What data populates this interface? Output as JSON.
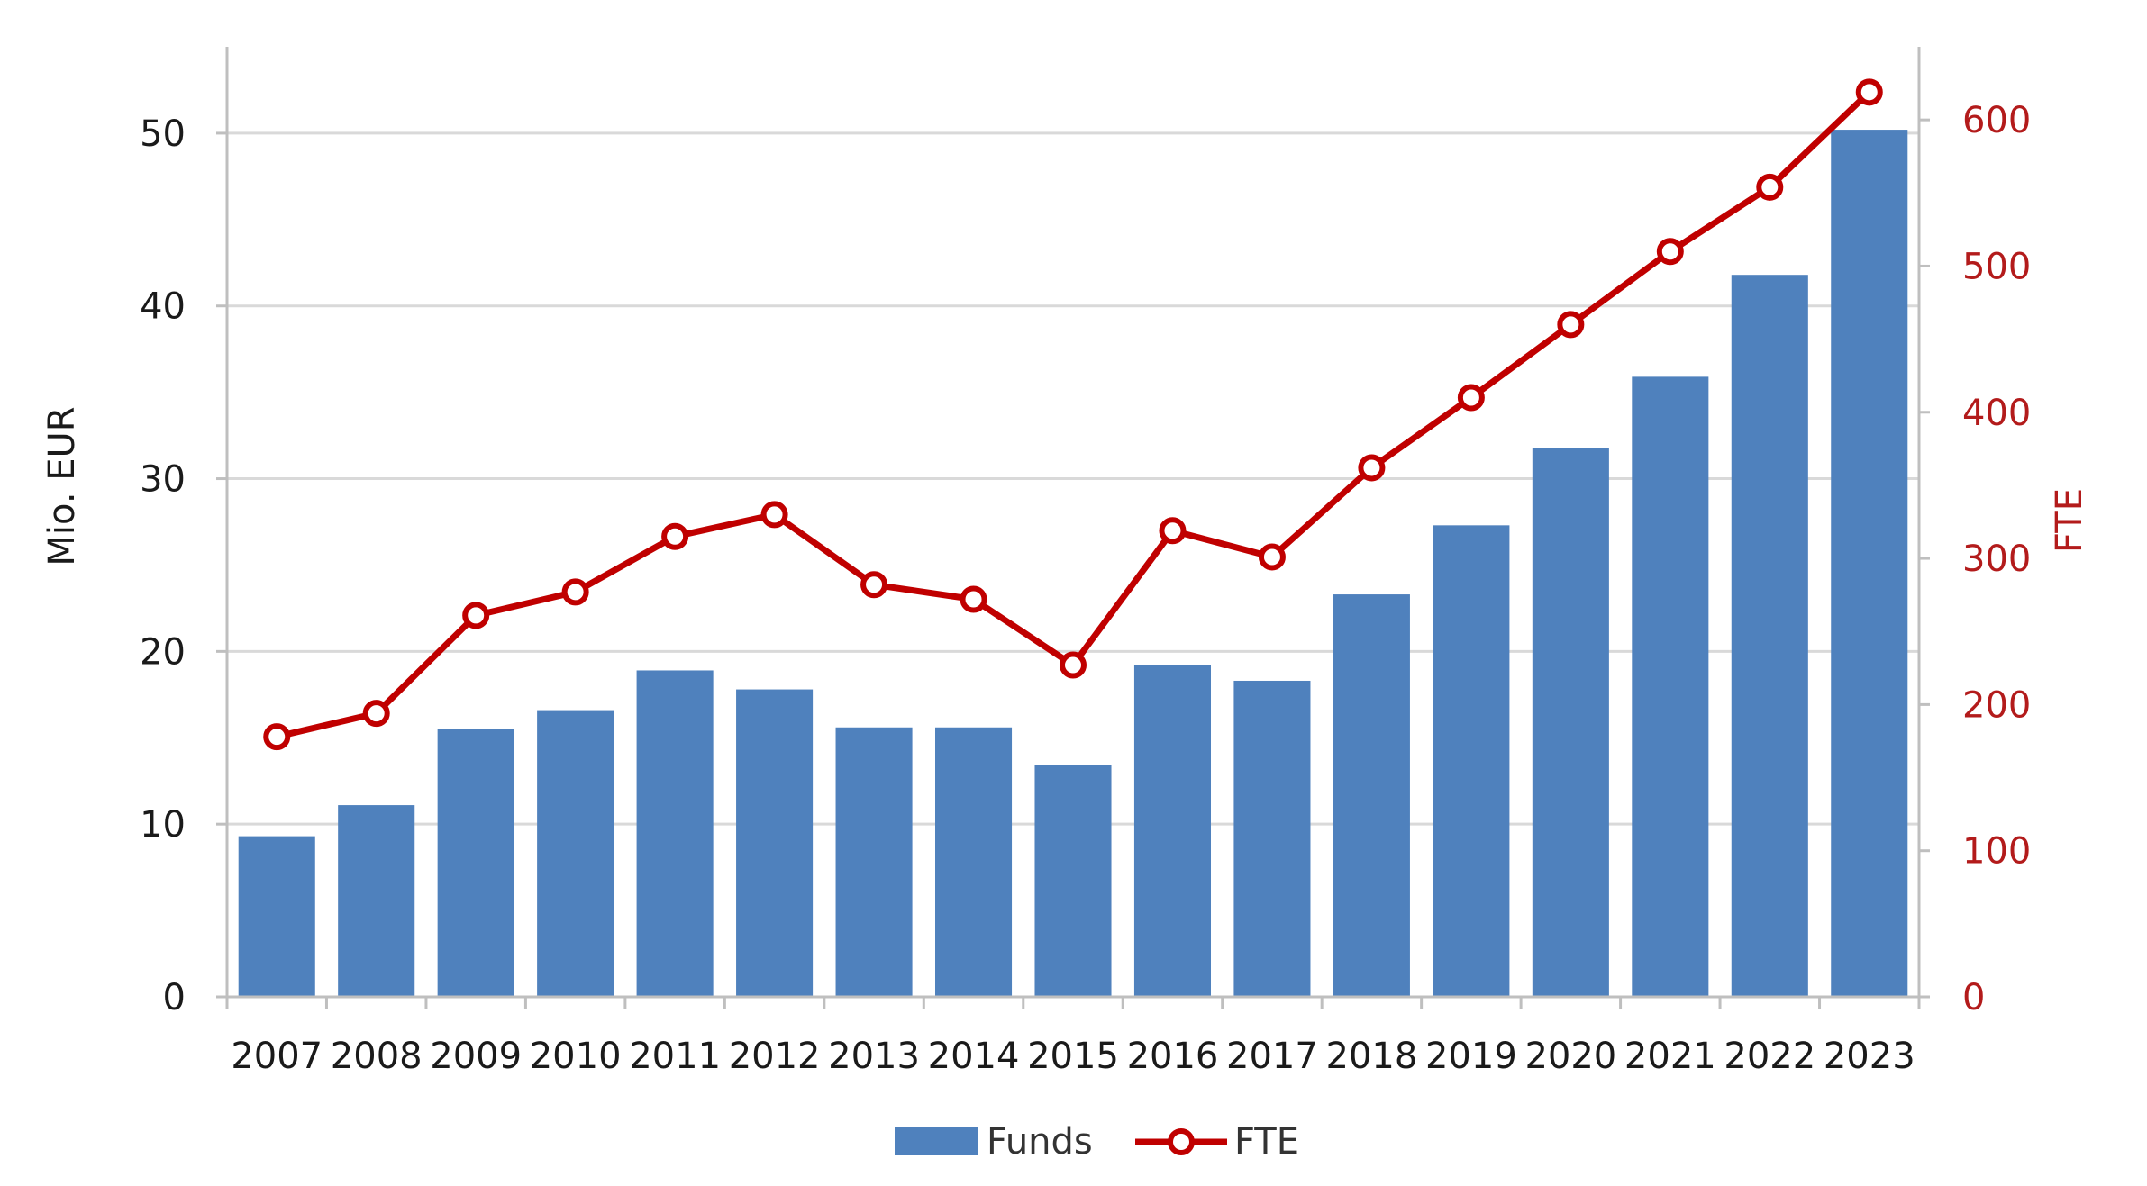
{
  "chart_data": {
    "type": "bar+line",
    "categories": [
      "2007",
      "2008",
      "2009",
      "2010",
      "2011",
      "2012",
      "2013",
      "2014",
      "2015",
      "2016",
      "2017",
      "2018",
      "2019",
      "2020",
      "2021",
      "2022",
      "2023"
    ],
    "series": [
      {
        "name": "Funds",
        "type": "bar",
        "axis": "left",
        "color": "#4f81bd",
        "values": [
          9.3,
          11.1,
          15.5,
          16.6,
          18.9,
          17.8,
          15.6,
          15.6,
          13.4,
          19.2,
          18.3,
          23.3,
          27.3,
          31.8,
          35.9,
          41.8,
          50.2
        ]
      },
      {
        "name": "FTE",
        "type": "line",
        "axis": "right",
        "color": "#c00000",
        "values": [
          178,
          194,
          261,
          277,
          315,
          330,
          282,
          272,
          227,
          319,
          301,
          362,
          410,
          460,
          510,
          554,
          619
        ]
      }
    ],
    "title": "",
    "xlabel": "",
    "ylabel": "Mio. EUR",
    "y2label": "FTE",
    "ylim": [
      0,
      55
    ],
    "y2lim": [
      0,
      650
    ],
    "yticks": [
      0,
      10,
      20,
      30,
      40,
      50
    ],
    "y2ticks": [
      0,
      100,
      200,
      300,
      400,
      500,
      600
    ],
    "grid": true,
    "legend": "bottom"
  }
}
